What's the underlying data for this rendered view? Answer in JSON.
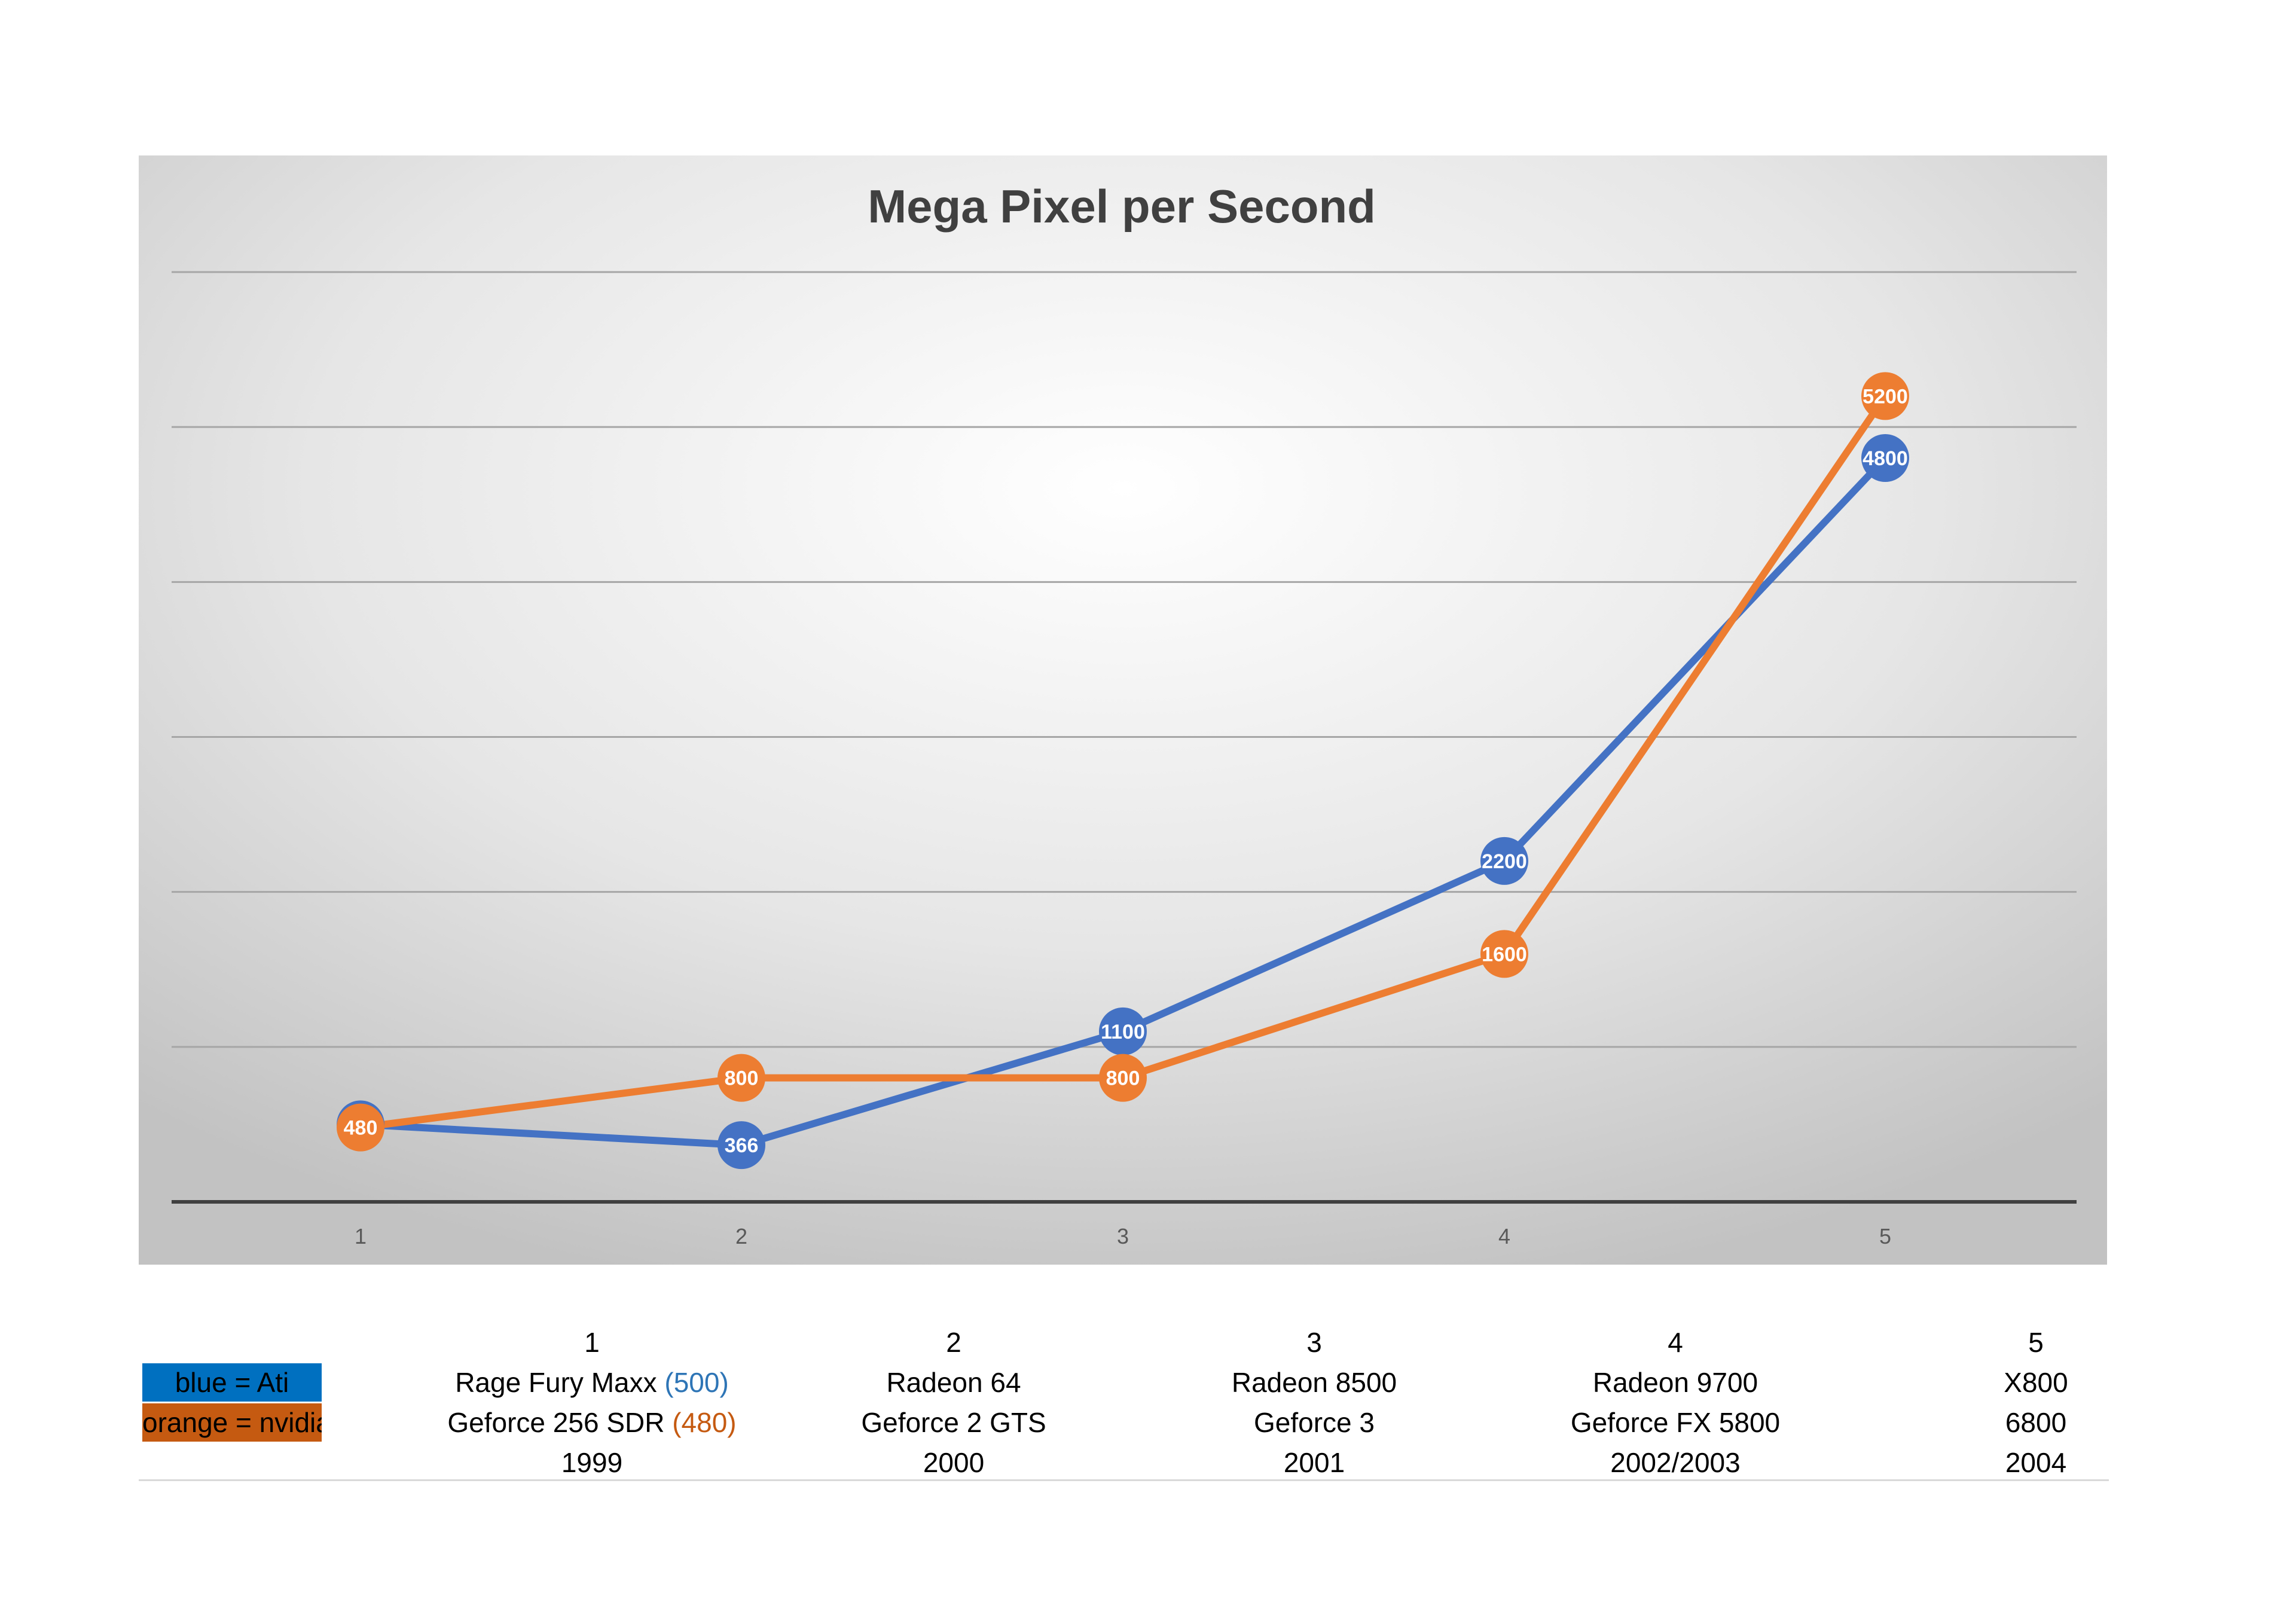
{
  "colors": {
    "ati_series": "#4472c4",
    "nvidia_series": "#ed7d31",
    "legend_blue": "#0070c0",
    "legend_orange": "#c55a11",
    "plot_background_center": "#ffffff",
    "plot_background_edge": "#c9c9c9",
    "gridline": "#a6a6a6",
    "axis_line": "#404040"
  },
  "chart_data": {
    "type": "line",
    "title": "Mega Pixel per Second",
    "xlabel": "",
    "ylabel": "",
    "categories": [
      "1",
      "2",
      "3",
      "4",
      "5"
    ],
    "series": [
      {
        "values": [
          500,
          366,
          1100,
          2200,
          4800
        ],
        "color": "#4472c4"
      },
      {
        "values": [
          480,
          800,
          800,
          1600,
          5200
        ],
        "color": "#ed7d31"
      }
    ],
    "ylim": [
      0,
      6000
    ],
    "y_gridline_step": 1000,
    "y_tick_labels_shown": false,
    "grid": true,
    "legend": "none",
    "data_labels": true,
    "markers": "circle"
  },
  "table": {
    "columns": [
      "1",
      "2",
      "3",
      "4",
      "5"
    ],
    "rows": [
      {
        "legend": "blue = Ati",
        "cells": [
          {
            "text": "Rage Fury Maxx ",
            "accent": "(500)"
          },
          {
            "text": "Radeon 64",
            "accent": ""
          },
          {
            "text": "Radeon 8500",
            "accent": ""
          },
          {
            "text": "Radeon 9700",
            "accent": ""
          },
          {
            "text": "X800",
            "accent": ""
          }
        ]
      },
      {
        "legend": "orange = nvidia",
        "cells": [
          {
            "text": "Geforce 256 SDR ",
            "accent": "(480)"
          },
          {
            "text": "Geforce 2 GTS",
            "accent": ""
          },
          {
            "text": "Geforce 3",
            "accent": ""
          },
          {
            "text": "Geforce FX 5800",
            "accent": ""
          },
          {
            "text": "6800",
            "accent": ""
          }
        ]
      },
      {
        "legend": "",
        "cells": [
          {
            "text": "1999",
            "accent": ""
          },
          {
            "text": "2000",
            "accent": ""
          },
          {
            "text": "2001",
            "accent": ""
          },
          {
            "text": "2002/2003",
            "accent": ""
          },
          {
            "text": "2004",
            "accent": ""
          }
        ]
      }
    ]
  }
}
